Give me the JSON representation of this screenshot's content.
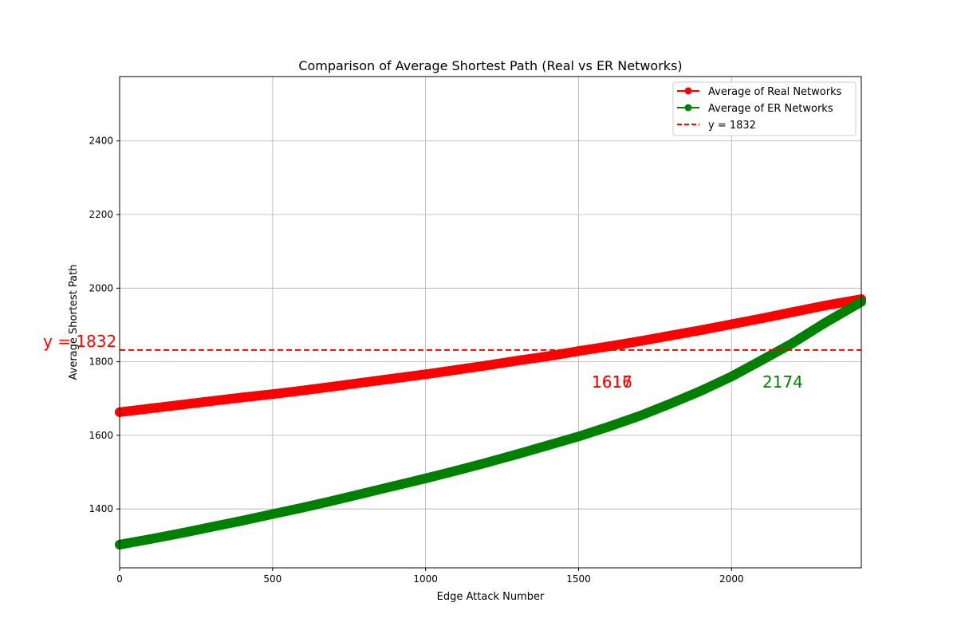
{
  "chart_data": {
    "type": "line",
    "title": "Comparison of Average Shortest Path (Real vs ER Networks)",
    "xlabel": "Edge Attack Number",
    "ylabel": "Average Shortest Path",
    "xlim": [
      0,
      2424
    ],
    "ylim": [
      1240,
      2575
    ],
    "x_ticks": [
      0,
      500,
      1000,
      1500,
      2000
    ],
    "y_ticks": [
      1400,
      1600,
      1800,
      2000,
      2200,
      2400
    ],
    "grid": true,
    "legend_position": "top-right",
    "series": [
      {
        "name": "Average of Real Networks",
        "color": "#ff0000",
        "x": [
          0,
          100,
          200,
          300,
          400,
          500,
          600,
          700,
          800,
          900,
          1000,
          1100,
          1200,
          1300,
          1400,
          1500,
          1600,
          1700,
          1800,
          1900,
          2000,
          2100,
          2200,
          2300,
          2424
        ],
        "y": [
          1663,
          1673,
          1683,
          1693,
          1703,
          1712,
          1722,
          1733,
          1744,
          1755,
          1766,
          1778,
          1790,
          1803,
          1815,
          1829,
          1842,
          1856,
          1871,
          1886,
          1902,
          1918,
          1935,
          1952,
          1970
        ]
      },
      {
        "name": "Average of ER Networks",
        "color": "#008000",
        "x": [
          0,
          100,
          200,
          300,
          400,
          500,
          600,
          700,
          800,
          900,
          1000,
          1100,
          1200,
          1300,
          1400,
          1500,
          1600,
          1700,
          1800,
          1900,
          2000,
          2100,
          2200,
          2300,
          2424
        ],
        "y": [
          1303,
          1318,
          1334,
          1351,
          1368,
          1386,
          1404,
          1423,
          1443,
          1463,
          1483,
          1504,
          1526,
          1549,
          1573,
          1597,
          1624,
          1653,
          1686,
          1721,
          1760,
          1805,
          1851,
          1903,
          1963
        ]
      }
    ],
    "hlines": [
      {
        "y": 1832,
        "label": "y = 1832",
        "color": "#ff0000",
        "style": "dashed"
      }
    ],
    "annotations": [
      {
        "text": "y = 1832",
        "color": "#ff0000"
      },
      {
        "text": "1616",
        "color": "#ff0000"
      },
      {
        "text": "1617",
        "color": "#ff0000"
      },
      {
        "text": "2174",
        "color": "#008000"
      }
    ]
  }
}
